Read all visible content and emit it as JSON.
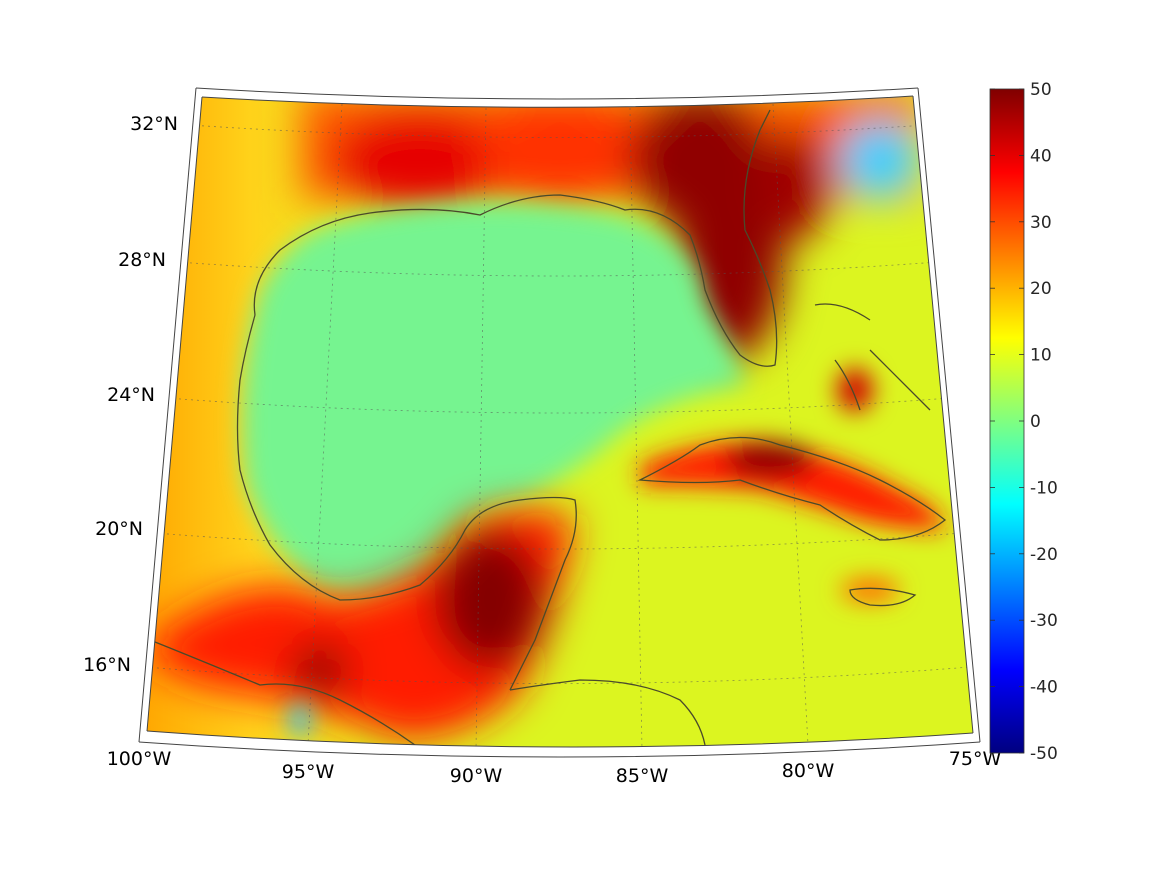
{
  "map": {
    "projection": "conic",
    "region": "Gulf of Mexico and Caribbean",
    "lon_range": [
      -100,
      -75
    ],
    "lat_range": [
      14,
      33
    ],
    "grid": true,
    "coastlines": true,
    "lat_labels": [
      {
        "lat": 32,
        "text": "32°N"
      },
      {
        "lat": 28,
        "text": "28°N"
      },
      {
        "lat": 24,
        "text": "24°N"
      },
      {
        "lat": 20,
        "text": "20°N"
      },
      {
        "lat": 16,
        "text": "16°N"
      }
    ],
    "lon_labels": [
      {
        "lon": -100,
        "text": "100°W"
      },
      {
        "lon": -95,
        "text": "95°W"
      },
      {
        "lon": -90,
        "text": "90°W"
      },
      {
        "lon": -85,
        "text": "85°W"
      },
      {
        "lon": -80,
        "text": "80°W"
      },
      {
        "lon": -75,
        "text": "75°W"
      }
    ]
  },
  "colorbar": {
    "colormap": "jet",
    "range": [
      -50,
      50
    ],
    "ticks": [
      "50",
      "40",
      "30",
      "20",
      "10",
      "0",
      "-10",
      "-20",
      "-30",
      "-40",
      "-50"
    ]
  },
  "colors": {
    "ocean_base": "#8cf870",
    "gulf_interior": "#6ef59a",
    "land_warm": "#ffd21a",
    "coast_red": "#ff2a00",
    "hot_dark": "#800000",
    "coastline": "#4a4a2a"
  }
}
